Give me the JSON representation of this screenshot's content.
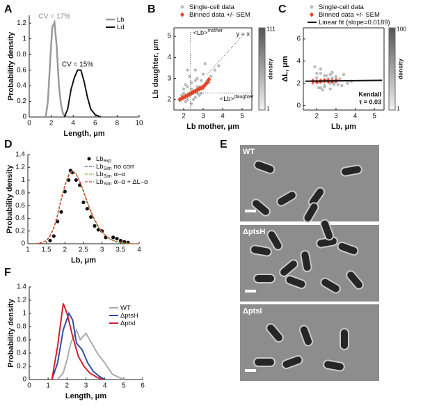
{
  "chart_data": [
    {
      "type": "line",
      "panel_label": "A",
      "xlabel": "Length, μm",
      "ylabel": "Probability density",
      "xlim": [
        0,
        10
      ],
      "ylim": [
        0,
        1.3
      ],
      "xticks": [
        0,
        2,
        4,
        6,
        8,
        10
      ],
      "yticks": [
        0,
        0.2,
        0.4,
        0.6,
        0.8,
        1,
        1.2
      ],
      "box": false,
      "legend": "upper right",
      "series": [
        {
          "name": "Lb",
          "color": "#999999",
          "mode": "line",
          "width": 2.5,
          "annotation": "CV = 17%",
          "x": [
            1.5,
            1.7,
            1.9,
            2.1,
            2.3,
            2.5,
            2.7,
            2.9,
            3.1,
            3.5
          ],
          "values": [
            0,
            0.2,
            0.7,
            1.15,
            1.21,
            0.9,
            0.4,
            0.15,
            0.03,
            0
          ]
        },
        {
          "name": "Ld",
          "color": "#111111",
          "mode": "line",
          "width": 2,
          "annotation": "CV = 15%",
          "x": [
            3.2,
            3.5,
            3.8,
            4.1,
            4.4,
            4.7,
            5.0,
            5.3,
            5.6,
            6.0,
            6.5
          ],
          "values": [
            0,
            0.1,
            0.35,
            0.5,
            0.6,
            0.6,
            0.45,
            0.25,
            0.1,
            0.03,
            0
          ]
        }
      ]
    },
    {
      "type": "scatter",
      "panel_label": "B",
      "xlabel": "Lb mother, μm",
      "ylabel": "Lb daughter, μm",
      "xlim": [
        1.5,
        5.5
      ],
      "ylim": [
        1.5,
        5.4
      ],
      "xticks": [
        2,
        3,
        4,
        5
      ],
      "yticks": [
        2,
        3,
        4,
        5
      ],
      "box": true,
      "legend": "top",
      "colorbar": {
        "min": 1,
        "max": 111,
        "label": "density"
      },
      "reference": {
        "mother_mean": 2.35,
        "daughter_mean": 2.3,
        "mother_label": "<Lb>",
        "mother_sup": "mother",
        "daughter_label": "<Lb>",
        "daughter_sup": "daughter",
        "identity_label": "y = x"
      },
      "series": [
        {
          "name": "Single-cell data",
          "color": "#bbbbbb",
          "mode": "markers",
          "marker": "circle",
          "x": [
            1.8,
            2.0,
            2.1,
            2.2,
            2.3,
            2.4,
            2.5,
            2.6,
            2.7,
            2.8,
            2.9,
            3.0,
            3.1,
            3.2,
            3.4,
            3.6,
            2.2,
            2.4,
            2.6,
            2.8,
            2.0,
            2.3,
            2.5,
            2.7,
            3.0,
            3.3,
            1.9,
            2.1,
            2.6,
            2.9,
            3.8,
            2.4,
            2.2,
            2.7,
            3.1
          ],
          "values": [
            2.0,
            2.3,
            1.9,
            2.6,
            2.2,
            2.8,
            2.4,
            2.1,
            3.0,
            2.6,
            2.3,
            3.2,
            2.7,
            2.9,
            3.1,
            3.4,
            2.0,
            2.5,
            2.9,
            2.2,
            2.5,
            3.1,
            2.0,
            2.6,
            2.5,
            2.8,
            2.2,
            2.7,
            3.4,
            2.9,
            3.6,
            1.8,
            3.4,
            2.3,
            3.7
          ]
        },
        {
          "name": "Binned data +/- SEM",
          "color": "#e8442a",
          "mode": "markers",
          "marker": "diamond",
          "x": [
            1.8,
            1.9,
            2.0,
            2.1,
            2.2,
            2.3,
            2.4,
            2.5,
            2.6,
            2.7,
            2.8,
            2.9,
            3.0,
            3.1,
            3.2,
            3.3
          ],
          "values": [
            2.0,
            2.05,
            2.1,
            2.15,
            2.2,
            2.25,
            2.3,
            2.35,
            2.4,
            2.45,
            2.5,
            2.55,
            2.6,
            2.7,
            2.8,
            2.95
          ]
        }
      ]
    },
    {
      "type": "scatter",
      "panel_label": "C",
      "xlabel": "Lb, μm",
      "ylabel": "ΔL, μm",
      "xlim": [
        1.3,
        5.5
      ],
      "ylim": [
        -0.4,
        7
      ],
      "xticks": [
        2,
        3,
        4,
        5
      ],
      "yticks": [
        0,
        2,
        4,
        6
      ],
      "box": true,
      "legend": "top",
      "colorbar": {
        "min": 1,
        "max": 100,
        "label": "density"
      },
      "stat_label": "Kendall",
      "stat_value": "τ = 0.03",
      "series": [
        {
          "name": "Single-cell data",
          "color": "#bbbbbb",
          "mode": "markers",
          "marker": "circle",
          "x": [
            1.8,
            2.0,
            2.1,
            2.2,
            2.3,
            2.4,
            2.5,
            2.6,
            2.7,
            2.8,
            2.9,
            3.0,
            3.1,
            3.2,
            3.4,
            3.6,
            2.2,
            2.4,
            2.6,
            2.8,
            2.0,
            2.3,
            2.5,
            2.7,
            3.0,
            3.3,
            1.9,
            2.1,
            2.6,
            2.9,
            3.8,
            2.4,
            2.2,
            2.7,
            3.1
          ],
          "values": [
            2.0,
            2.5,
            1.6,
            2.9,
            2.2,
            1.8,
            2.7,
            2.3,
            1.5,
            3.0,
            2.1,
            2.6,
            1.9,
            2.4,
            2.8,
            2.0,
            3.3,
            1.7,
            2.2,
            2.5,
            2.9,
            1.4,
            2.3,
            2.0,
            2.6,
            1.8,
            3.5,
            2.1,
            2.4,
            1.9,
            2.2,
            2.7,
            1.6,
            2.8,
            2.3
          ]
        },
        {
          "name": "Binned data +/- SEM",
          "color": "#e8442a",
          "mode": "markers",
          "marker": "diamond",
          "x": [
            1.8,
            2.0,
            2.2,
            2.4,
            2.6,
            2.8,
            3.0
          ],
          "values": [
            2.2,
            2.15,
            2.2,
            2.25,
            2.2,
            2.2,
            2.25
          ]
        },
        {
          "name": "Linear fit (slope=0.0189)",
          "color": "#111111",
          "mode": "fit",
          "slope": 0.0189,
          "intercept": 2.17
        }
      ]
    },
    {
      "type": "line",
      "panel_label": "D",
      "xlabel": "Lb, μm",
      "ylabel": "Probability density",
      "xlim": [
        1,
        4
      ],
      "ylim": [
        0,
        1.4
      ],
      "xticks": [
        1,
        1.5,
        2,
        2.5,
        3,
        3.5,
        4
      ],
      "yticks": [
        0,
        0.2,
        0.4,
        0.6,
        0.8,
        1,
        1.2,
        1.4
      ],
      "box": false,
      "legend": "upper right",
      "series": [
        {
          "name": "Lb",
          "name_sub": "exp",
          "color": "#111111",
          "mode": "markers",
          "marker": "circle",
          "x": [
            1.6,
            1.7,
            1.8,
            1.9,
            2.0,
            2.1,
            2.15,
            2.2,
            2.3,
            2.4,
            2.5,
            2.6,
            2.7,
            2.8,
            2.9,
            3.0,
            3.1,
            3.3,
            3.4,
            3.5,
            3.6,
            3.7
          ],
          "values": [
            0.05,
            0.12,
            0.35,
            0.5,
            0.82,
            1.0,
            1.15,
            1.12,
            1.0,
            0.92,
            0.65,
            0.55,
            0.42,
            0.28,
            0.22,
            0.2,
            0.1,
            0.1,
            0.08,
            0.05,
            0.03,
            0.02
          ]
        },
        {
          "name": "Lb",
          "name_sub": "Sim",
          "name_suffix": "no corr",
          "color": "#3a5fb0",
          "mode": "line",
          "dashed": true,
          "x": [
            1.2,
            1.3,
            1.4,
            1.5,
            1.6,
            1.7,
            1.8,
            1.9,
            2.0,
            2.1,
            2.2,
            2.3,
            2.4,
            2.5,
            2.6,
            2.7,
            2.8,
            2.9,
            3.0,
            3.1,
            3.2,
            3.3,
            3.4,
            3.5,
            3.6,
            3.8,
            4.0
          ],
          "values": [
            0,
            0.01,
            0.02,
            0.05,
            0.12,
            0.25,
            0.45,
            0.7,
            0.92,
            1.08,
            1.15,
            1.1,
            0.98,
            0.82,
            0.65,
            0.5,
            0.37,
            0.26,
            0.18,
            0.12,
            0.08,
            0.05,
            0.03,
            0.02,
            0.01,
            0,
            0
          ]
        },
        {
          "name": "Lb",
          "name_sub": "Sim",
          "name_suffix": "α–α",
          "color": "#7dbb42",
          "mode": "line",
          "dashed": true,
          "x": [
            1.2,
            1.3,
            1.4,
            1.5,
            1.6,
            1.7,
            1.8,
            1.9,
            2.0,
            2.1,
            2.2,
            2.3,
            2.4,
            2.5,
            2.6,
            2.7,
            2.8,
            2.9,
            3.0,
            3.1,
            3.2,
            3.3,
            3.4,
            3.5,
            3.6,
            3.8,
            4.0
          ],
          "values": [
            0,
            0.01,
            0.02,
            0.05,
            0.13,
            0.26,
            0.46,
            0.71,
            0.93,
            1.09,
            1.15,
            1.1,
            0.97,
            0.81,
            0.64,
            0.49,
            0.36,
            0.26,
            0.18,
            0.12,
            0.08,
            0.05,
            0.03,
            0.02,
            0.01,
            0,
            0
          ]
        },
        {
          "name": "Lb",
          "name_sub": "Sim",
          "name_suffix": "α–α + ΔL–α",
          "color": "#e03a2a",
          "mode": "line",
          "dashed": true,
          "x": [
            1.2,
            1.3,
            1.4,
            1.5,
            1.6,
            1.7,
            1.8,
            1.9,
            2.0,
            2.1,
            2.2,
            2.3,
            2.4,
            2.5,
            2.6,
            2.7,
            2.8,
            2.9,
            3.0,
            3.1,
            3.2,
            3.3,
            3.4,
            3.5,
            3.6,
            3.8,
            4.0
          ],
          "values": [
            0,
            0.01,
            0.02,
            0.05,
            0.12,
            0.24,
            0.44,
            0.69,
            0.91,
            1.07,
            1.14,
            1.1,
            0.98,
            0.83,
            0.66,
            0.51,
            0.38,
            0.27,
            0.19,
            0.13,
            0.08,
            0.05,
            0.03,
            0.02,
            0.01,
            0,
            0
          ]
        }
      ]
    },
    {
      "type": "line",
      "panel_label": "F",
      "xlabel": "Length, μm",
      "ylabel": "Probability density",
      "xlim": [
        0,
        6
      ],
      "ylim": [
        0,
        1.4
      ],
      "xticks": [
        0,
        1,
        2,
        3,
        4,
        5,
        6
      ],
      "yticks": [
        0,
        0.2,
        0.4,
        0.6,
        0.8,
        1,
        1.2,
        1.4
      ],
      "box": false,
      "legend": "upper right",
      "series": [
        {
          "name": "WT",
          "color": "#aaaaaa",
          "mode": "line",
          "width": 2,
          "x": [
            1.5,
            1.8,
            2.0,
            2.2,
            2.5,
            2.7,
            3.0,
            3.3,
            3.6,
            4.0,
            4.4,
            5.0
          ],
          "values": [
            0,
            0.1,
            0.3,
            0.55,
            0.75,
            0.6,
            0.7,
            0.55,
            0.4,
            0.25,
            0.08,
            0
          ]
        },
        {
          "name": "ΔptsH",
          "color": "#2f4fa8",
          "mode": "line",
          "width": 2,
          "x": [
            1.2,
            1.5,
            1.8,
            2.1,
            2.3,
            2.5,
            2.8,
            3.1,
            3.4,
            3.7,
            4.0
          ],
          "values": [
            0,
            0.25,
            0.75,
            1.0,
            0.9,
            0.55,
            0.45,
            0.25,
            0.12,
            0.05,
            0
          ]
        },
        {
          "name": "ΔptsI",
          "color": "#d0202e",
          "mode": "line",
          "width": 2,
          "x": [
            1.2,
            1.5,
            1.8,
            2.0,
            2.3,
            2.6,
            2.9,
            3.2,
            3.6,
            3.9
          ],
          "values": [
            0,
            0.5,
            1.15,
            1.0,
            0.65,
            0.35,
            0.2,
            0.1,
            0.03,
            0
          ]
        }
      ]
    }
  ],
  "micrographs": {
    "panel_label": "E",
    "panels": [
      {
        "label": "WT"
      },
      {
        "label": "ΔptsH"
      },
      {
        "label": "ΔptsI"
      }
    ]
  }
}
